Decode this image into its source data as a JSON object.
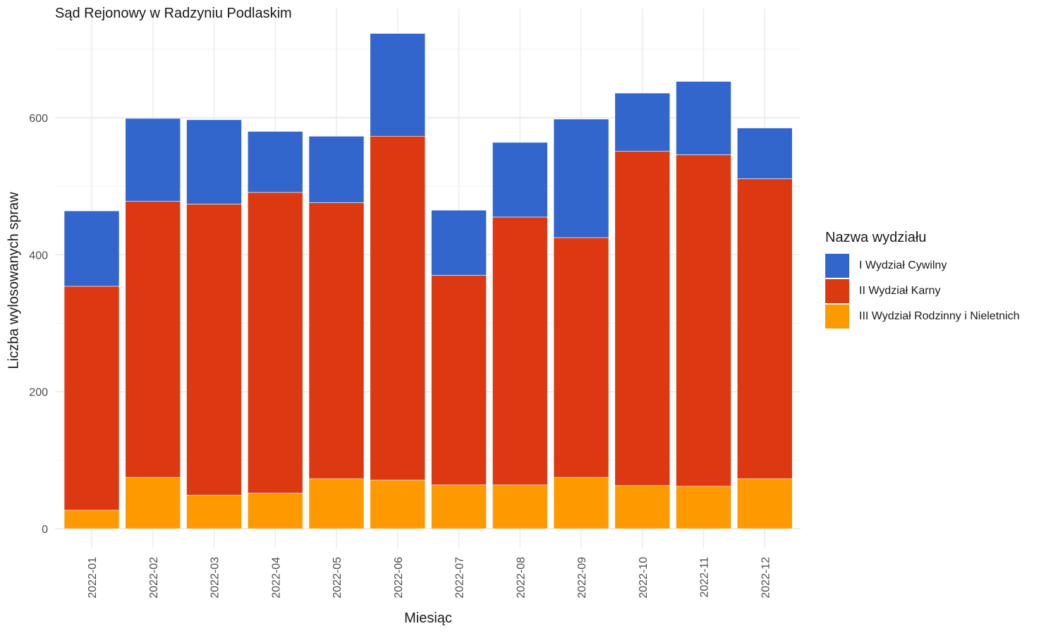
{
  "chart_data": {
    "type": "bar",
    "stacked": true,
    "title": "Sąd Rejonowy w Radzyniu Podlaskim",
    "xlabel": "Miesiąc",
    "ylabel": "Liczba wylosowanych spraw",
    "legend_title": "Nazwa wydziału",
    "legend_position": "right",
    "grid": true,
    "ylim": [
      0,
      760
    ],
    "yticks": [
      0,
      200,
      400,
      600
    ],
    "categories": [
      "2022-01",
      "2022-02",
      "2022-03",
      "2022-04",
      "2022-05",
      "2022-06",
      "2022-07",
      "2022-08",
      "2022-09",
      "2022-10",
      "2022-11",
      "2022-12"
    ],
    "series": [
      {
        "name": "III Wydział Rodzinny i Nieletnich",
        "color": "#FF9900",
        "values": [
          27,
          75,
          49,
          52,
          73,
          71,
          64,
          64,
          75,
          63,
          62,
          73
        ]
      },
      {
        "name": "II Wydział Karny",
        "color": "#DC3912",
        "values": [
          327,
          403,
          425,
          439,
          403,
          502,
          306,
          391,
          350,
          488,
          484,
          438
        ]
      },
      {
        "name": "I Wydział Cywilny",
        "color": "#3366CC",
        "values": [
          110,
          121,
          123,
          89,
          97,
          150,
          95,
          109,
          173,
          85,
          107,
          74
        ]
      }
    ],
    "legend_order": [
      "I Wydział Cywilny",
      "II Wydział Karny",
      "III Wydział Rodzinny i Nieletnich"
    ]
  }
}
